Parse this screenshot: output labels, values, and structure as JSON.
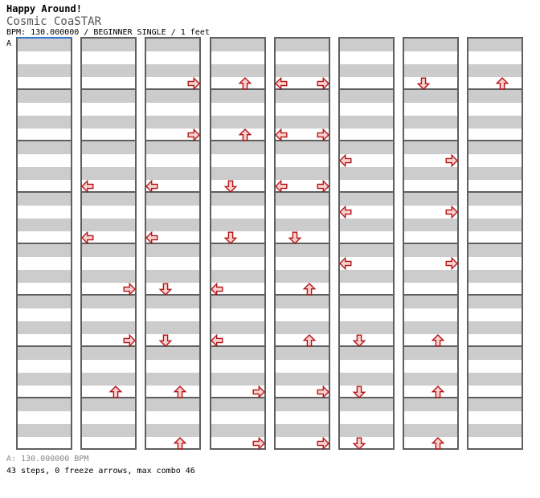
{
  "header": {
    "group": "Happy Around!",
    "title": "Cosmic CoaSTAR",
    "details": "BPM: 130.000000 / BEGINNER SINGLE / 1 feet"
  },
  "marker": {
    "label": "A"
  },
  "footer": {
    "bpm_info": "A: 130.000000 BPM",
    "stats": "43 steps, 0 freeze arrows, max combo 46"
  },
  "colors": {
    "stripe_gray": "#cccccc",
    "grid_border": "#5f5f5f",
    "marker_blue": "#3377cc",
    "arrow_fill": "#f8d0d0",
    "arrow_stroke": "#b51414",
    "title_text": "#000000",
    "song_text": "#555555",
    "footer_bpm_text": "#888888"
  },
  "chart_data": {
    "type": "ddr-step-chart",
    "bpm": 130.0,
    "difficulty": "BEGINNER SINGLE",
    "feet": 1,
    "steps": 43,
    "freeze_arrows": 0,
    "max_combo": 46,
    "columns": 8,
    "measures_per_column": 8,
    "beats_per_measure": 4,
    "lanes": [
      "left",
      "down",
      "up",
      "right"
    ],
    "arrows": [
      {
        "col": 1,
        "measure": 2,
        "beat": 3,
        "dir": "left"
      },
      {
        "col": 1,
        "measure": 3,
        "beat": 3,
        "dir": "left"
      },
      {
        "col": 1,
        "measure": 4,
        "beat": 3,
        "dir": "right"
      },
      {
        "col": 1,
        "measure": 5,
        "beat": 3,
        "dir": "right"
      },
      {
        "col": 1,
        "measure": 6,
        "beat": 3,
        "dir": "up"
      },
      {
        "col": 2,
        "measure": 0,
        "beat": 3,
        "dir": "right"
      },
      {
        "col": 2,
        "measure": 1,
        "beat": 3,
        "dir": "right"
      },
      {
        "col": 2,
        "measure": 2,
        "beat": 3,
        "dir": "left"
      },
      {
        "col": 2,
        "measure": 3,
        "beat": 3,
        "dir": "left"
      },
      {
        "col": 2,
        "measure": 4,
        "beat": 3,
        "dir": "down"
      },
      {
        "col": 2,
        "measure": 5,
        "beat": 3,
        "dir": "down"
      },
      {
        "col": 2,
        "measure": 6,
        "beat": 3,
        "dir": "up"
      },
      {
        "col": 2,
        "measure": 7,
        "beat": 3,
        "dir": "up"
      },
      {
        "col": 3,
        "measure": 0,
        "beat": 3,
        "dir": "up"
      },
      {
        "col": 3,
        "measure": 1,
        "beat": 3,
        "dir": "up"
      },
      {
        "col": 3,
        "measure": 2,
        "beat": 3,
        "dir": "down"
      },
      {
        "col": 3,
        "measure": 3,
        "beat": 3,
        "dir": "down"
      },
      {
        "col": 3,
        "measure": 4,
        "beat": 3,
        "dir": "left"
      },
      {
        "col": 3,
        "measure": 5,
        "beat": 3,
        "dir": "left"
      },
      {
        "col": 3,
        "measure": 6,
        "beat": 3,
        "dir": "right"
      },
      {
        "col": 3,
        "measure": 7,
        "beat": 3,
        "dir": "right"
      },
      {
        "col": 4,
        "measure": 0,
        "beat": 3,
        "dir": "left"
      },
      {
        "col": 4,
        "measure": 0,
        "beat": 3,
        "dir": "right"
      },
      {
        "col": 4,
        "measure": 1,
        "beat": 3,
        "dir": "left"
      },
      {
        "col": 4,
        "measure": 1,
        "beat": 3,
        "dir": "right"
      },
      {
        "col": 4,
        "measure": 2,
        "beat": 3,
        "dir": "left"
      },
      {
        "col": 4,
        "measure": 2,
        "beat": 3,
        "dir": "right"
      },
      {
        "col": 4,
        "measure": 3,
        "beat": 3,
        "dir": "down"
      },
      {
        "col": 4,
        "measure": 4,
        "beat": 3,
        "dir": "up"
      },
      {
        "col": 4,
        "measure": 5,
        "beat": 3,
        "dir": "up"
      },
      {
        "col": 4,
        "measure": 6,
        "beat": 3,
        "dir": "right"
      },
      {
        "col": 4,
        "measure": 7,
        "beat": 3,
        "dir": "right"
      },
      {
        "col": 5,
        "measure": 2,
        "beat": 1,
        "dir": "left"
      },
      {
        "col": 5,
        "measure": 3,
        "beat": 1,
        "dir": "left"
      },
      {
        "col": 5,
        "measure": 4,
        "beat": 1,
        "dir": "left"
      },
      {
        "col": 5,
        "measure": 5,
        "beat": 3,
        "dir": "down"
      },
      {
        "col": 5,
        "measure": 6,
        "beat": 3,
        "dir": "down"
      },
      {
        "col": 5,
        "measure": 7,
        "beat": 3,
        "dir": "down"
      },
      {
        "col": 6,
        "measure": 0,
        "beat": 3,
        "dir": "down"
      },
      {
        "col": 6,
        "measure": 2,
        "beat": 1,
        "dir": "right"
      },
      {
        "col": 6,
        "measure": 3,
        "beat": 1,
        "dir": "right"
      },
      {
        "col": 6,
        "measure": 4,
        "beat": 1,
        "dir": "right"
      },
      {
        "col": 6,
        "measure": 5,
        "beat": 3,
        "dir": "up"
      },
      {
        "col": 6,
        "measure": 6,
        "beat": 3,
        "dir": "up"
      },
      {
        "col": 6,
        "measure": 7,
        "beat": 3,
        "dir": "up"
      },
      {
        "col": 7,
        "measure": 0,
        "beat": 3,
        "dir": "up"
      }
    ]
  }
}
